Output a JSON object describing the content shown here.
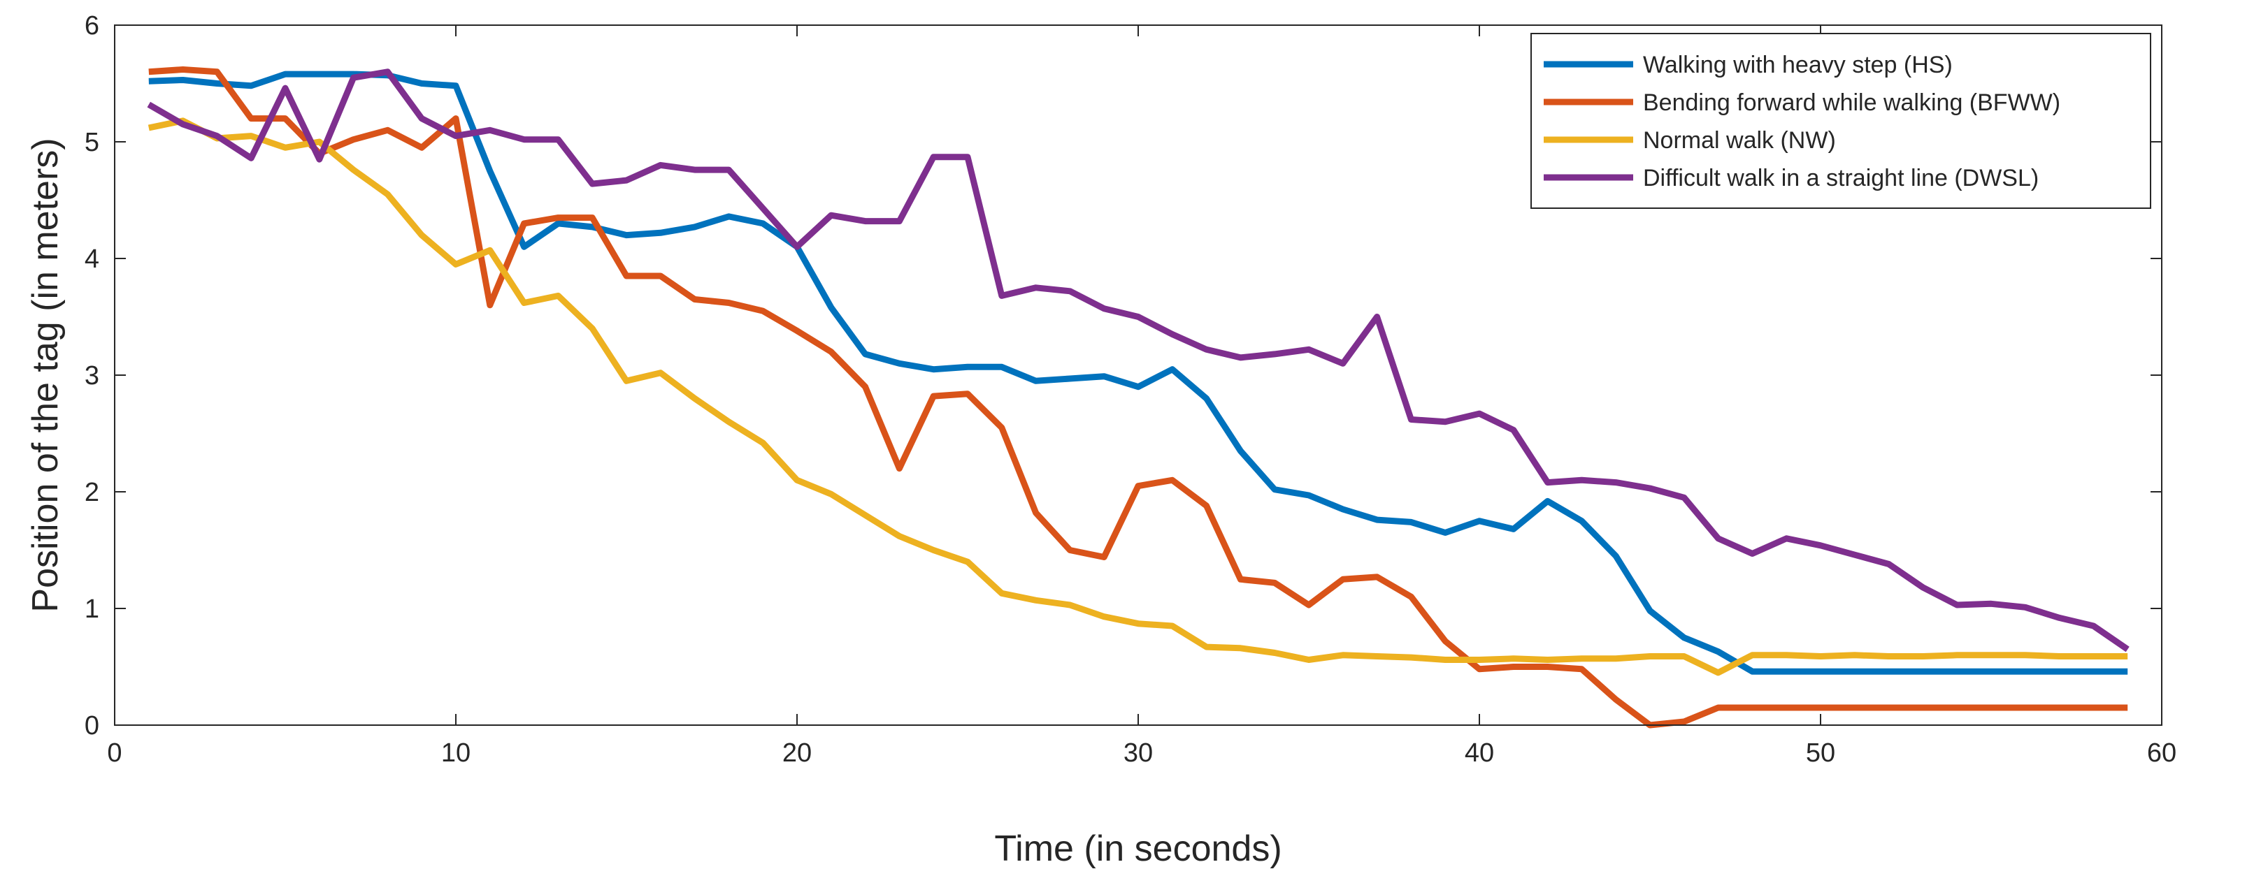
{
  "chart_data": {
    "type": "line",
    "title": "",
    "xlabel": "Time (in seconds)",
    "ylabel": "Position of the tag (in meters)",
    "xlim": [
      0,
      60
    ],
    "ylim": [
      0,
      6
    ],
    "xticks": [
      0,
      10,
      20,
      30,
      40,
      50,
      60
    ],
    "yticks": [
      0,
      1,
      2,
      3,
      4,
      5,
      6
    ],
    "grid": false,
    "legend_position": "top-right",
    "x": [
      1,
      2,
      3,
      4,
      5,
      6,
      7,
      8,
      9,
      10,
      11,
      12,
      13,
      14,
      15,
      16,
      17,
      18,
      19,
      20,
      21,
      22,
      23,
      24,
      25,
      26,
      27,
      28,
      29,
      30,
      31,
      32,
      33,
      34,
      35,
      36,
      37,
      38,
      39,
      40,
      41,
      42,
      43,
      44,
      45,
      46,
      47,
      48,
      49,
      50,
      51,
      52,
      53,
      54,
      55,
      56,
      57,
      58,
      59
    ],
    "series": [
      {
        "name": "Walking with heavy step (HS)",
        "color": "#0072BD",
        "values": [
          5.52,
          5.53,
          5.5,
          5.48,
          5.58,
          5.58,
          5.58,
          5.57,
          5.5,
          5.48,
          4.75,
          4.1,
          4.3,
          4.27,
          4.2,
          4.22,
          4.27,
          4.36,
          4.3,
          4.1,
          3.58,
          3.18,
          3.1,
          3.05,
          3.07,
          3.07,
          2.95,
          2.97,
          2.99,
          2.9,
          3.05,
          2.8,
          2.35,
          2.02,
          1.97,
          1.85,
          1.76,
          1.74,
          1.65,
          1.75,
          1.68,
          1.92,
          1.75,
          1.45,
          0.98,
          0.75,
          0.63,
          0.46,
          0.46,
          0.46,
          0.46,
          0.46,
          0.46,
          0.46,
          0.46,
          0.46,
          0.46,
          0.46,
          0.46
        ]
      },
      {
        "name": "Bending forward while walking (BFWW)",
        "color": "#D95319",
        "values": [
          5.6,
          5.62,
          5.6,
          5.2,
          5.2,
          4.9,
          5.02,
          5.1,
          4.95,
          5.2,
          3.6,
          4.3,
          4.35,
          4.35,
          3.85,
          3.85,
          3.65,
          3.62,
          3.55,
          3.38,
          3.2,
          2.9,
          2.2,
          2.82,
          2.84,
          2.55,
          1.82,
          1.5,
          1.44,
          2.05,
          2.1,
          1.88,
          1.25,
          1.22,
          1.03,
          1.25,
          1.27,
          1.1,
          0.72,
          0.48,
          0.5,
          0.5,
          0.48,
          0.22,
          0.0,
          0.03,
          0.15,
          0.15,
          0.15,
          0.15,
          0.15,
          0.15,
          0.15,
          0.15,
          0.15,
          0.15,
          0.15,
          0.15,
          0.15
        ]
      },
      {
        "name": "Normal walk (NW)",
        "color": "#EDB120",
        "values": [
          5.12,
          5.18,
          5.03,
          5.05,
          4.95,
          5.0,
          4.76,
          4.55,
          4.2,
          3.95,
          4.07,
          3.62,
          3.68,
          3.4,
          2.95,
          3.02,
          2.8,
          2.6,
          2.42,
          2.1,
          1.98,
          1.8,
          1.62,
          1.5,
          1.4,
          1.13,
          1.07,
          1.03,
          0.93,
          0.87,
          0.85,
          0.67,
          0.66,
          0.62,
          0.56,
          0.6,
          0.59,
          0.58,
          0.56,
          0.56,
          0.57,
          0.56,
          0.57,
          0.57,
          0.59,
          0.59,
          0.45,
          0.6,
          0.6,
          0.59,
          0.6,
          0.59,
          0.59,
          0.6,
          0.6,
          0.6,
          0.59,
          0.59,
          0.59
        ]
      },
      {
        "name": "Difficult walk in a straight line (DWSL)",
        "color": "#7E2F8E",
        "values": [
          5.32,
          5.15,
          5.05,
          4.86,
          5.46,
          4.85,
          5.55,
          5.6,
          5.2,
          5.05,
          5.1,
          5.02,
          5.02,
          4.64,
          4.67,
          4.8,
          4.76,
          4.76,
          4.43,
          4.1,
          4.37,
          4.32,
          4.32,
          4.87,
          4.87,
          3.68,
          3.75,
          3.72,
          3.57,
          3.5,
          3.35,
          3.22,
          3.15,
          3.18,
          3.22,
          3.1,
          3.5,
          2.62,
          2.6,
          2.67,
          2.53,
          2.08,
          2.1,
          2.08,
          2.03,
          1.95,
          1.6,
          1.47,
          1.6,
          1.54,
          1.46,
          1.38,
          1.18,
          1.03,
          1.04,
          1.01,
          0.92,
          0.85,
          0.65
        ]
      }
    ]
  }
}
